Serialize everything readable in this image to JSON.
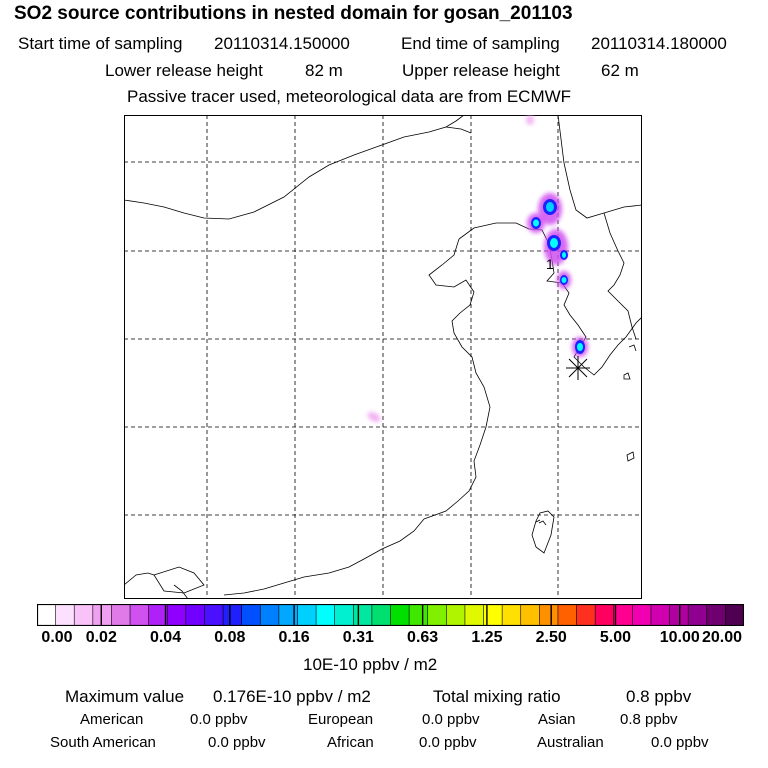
{
  "title": "SO2 source contributions in nested domain for gosan_201103",
  "sampling": {
    "start_label": "Start time of sampling",
    "start_value": "20110314.150000",
    "end_label": "End time of sampling",
    "end_value": "20110314.180000"
  },
  "release": {
    "lower_label": "Lower release height",
    "lower_value": "82 m",
    "upper_label": "Upper release height",
    "upper_value": "62 m"
  },
  "tracer_note": "Passive tracer used, meteorological data are from ECMWF",
  "map": {
    "source_marker_label": "1",
    "receptor_marker": "gosan-station-asterisk"
  },
  "colorbar": {
    "colors": [
      "#ffffff",
      "#fde0fd",
      "#f9c2f9",
      "#f0a0f0",
      "#e07ae8",
      "#d050f0",
      "#b020f8",
      "#9000ff",
      "#7000ff",
      "#4a10ff",
      "#2020ff",
      "#0050ff",
      "#0080ff",
      "#00a8ff",
      "#00d0ff",
      "#00ffff",
      "#00f0d0",
      "#00e8a0",
      "#00e070",
      "#00e000",
      "#40e800",
      "#80f000",
      "#b0f400",
      "#e0f800",
      "#ffff00",
      "#ffe000",
      "#ffc000",
      "#ff9000",
      "#ff6000",
      "#ff3020",
      "#ff0060",
      "#ff0090",
      "#f000b0",
      "#d000b0",
      "#b000a0",
      "#900090",
      "#700070",
      "#500050"
    ],
    "tick_labels": [
      "0.00",
      "0.02",
      "0.04",
      "0.08",
      "0.16",
      "0.31",
      "0.63",
      "1.25",
      "2.50",
      "5.00",
      "10.00",
      "20.00"
    ],
    "unit": "10E-10 ppbv / m2"
  },
  "summary": {
    "max_label": "Maximum value",
    "max_value": "0.176E-10 ppbv / m2",
    "total_label": "Total mixing ratio",
    "total_value": "0.8 ppbv"
  },
  "regions": [
    {
      "name": "American",
      "value": "0.0 ppbv"
    },
    {
      "name": "European",
      "value": "0.0 ppbv"
    },
    {
      "name": "Asian",
      "value": "0.8 ppbv"
    },
    {
      "name": "South American",
      "value": "0.0 ppbv"
    },
    {
      "name": "African",
      "value": "0.0 ppbv"
    },
    {
      "name": "Australian",
      "value": "0.0 ppbv"
    }
  ]
}
